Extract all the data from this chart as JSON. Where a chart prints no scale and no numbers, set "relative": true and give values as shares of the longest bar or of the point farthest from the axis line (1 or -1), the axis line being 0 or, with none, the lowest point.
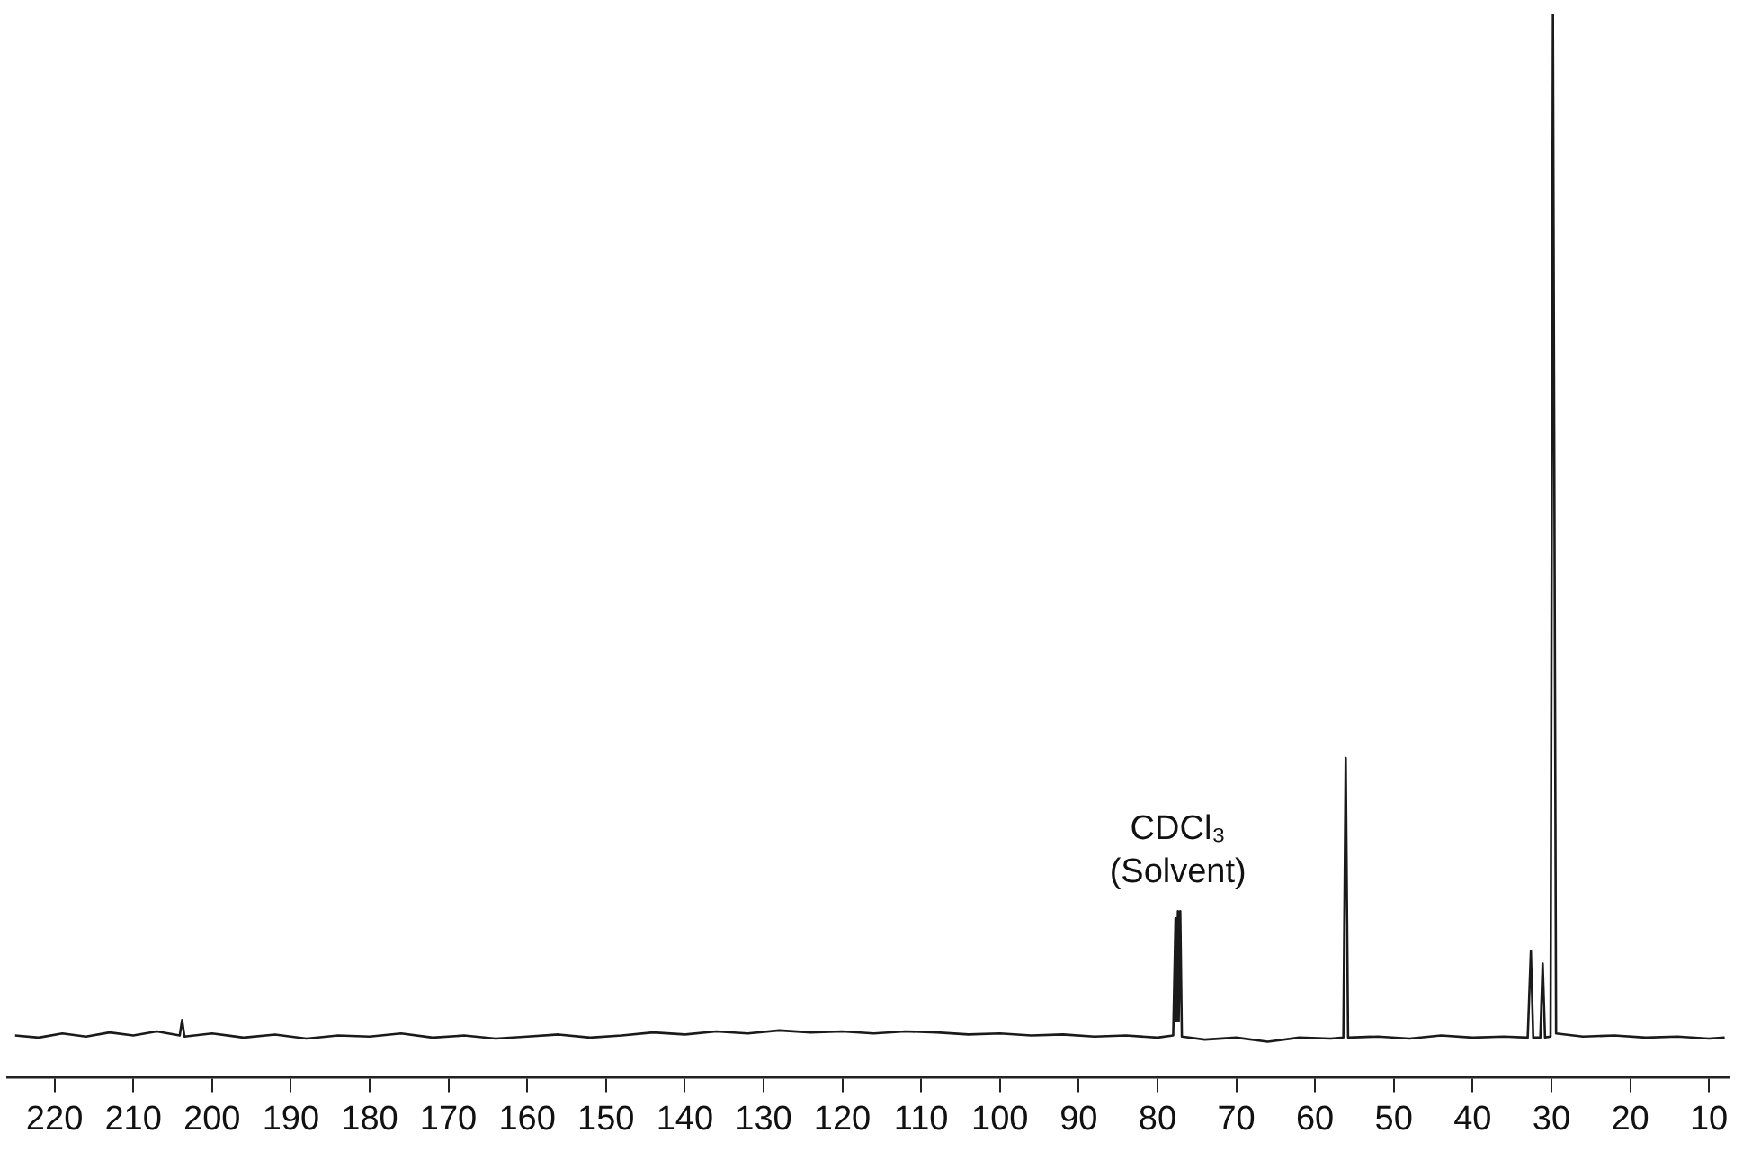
{
  "chart_data": {
    "type": "line",
    "relative": true,
    "color": "#1a1a1a",
    "marker": "none",
    "grid": false,
    "legend": false,
    "xlim": [
      226,
      7.5
    ],
    "xticks": [
      220,
      210,
      200,
      190,
      180,
      170,
      160,
      150,
      140,
      130,
      120,
      110,
      100,
      90,
      80,
      70,
      60,
      50,
      40,
      30,
      20,
      10
    ],
    "x": [
      225,
      222,
      219,
      216,
      213,
      210,
      207,
      204.1,
      203.8,
      203.5,
      200,
      196,
      192,
      188,
      184,
      180,
      176,
      172,
      168,
      164,
      160,
      156,
      152,
      148,
      144,
      140,
      136,
      132,
      128,
      124,
      120,
      116,
      112,
      108,
      104,
      100,
      96,
      92,
      88,
      84,
      80,
      78,
      77.7,
      77.6,
      77.4,
      77.3,
      77.1,
      76.9,
      74,
      70,
      66,
      62,
      58,
      56.4,
      56.1,
      55.8,
      52,
      48,
      44,
      40,
      36,
      33,
      32.6,
      32.3,
      31.4,
      31.1,
      30.8,
      30.1,
      29.8,
      29.4,
      26,
      22,
      18,
      14,
      10,
      8
    ],
    "values": [
      0.006,
      0.004,
      0.008,
      0.005,
      0.009,
      0.006,
      0.01,
      0.006,
      0.021,
      0.005,
      0.008,
      0.004,
      0.007,
      0.003,
      0.006,
      0.005,
      0.008,
      0.004,
      0.006,
      0.003,
      0.005,
      0.007,
      0.004,
      0.006,
      0.009,
      0.007,
      0.01,
      0.008,
      0.011,
      0.009,
      0.01,
      0.008,
      0.01,
      0.009,
      0.007,
      0.008,
      0.006,
      0.007,
      0.005,
      0.006,
      0.004,
      0.006,
      0.12,
      0.02,
      0.127,
      0.02,
      0.127,
      0.005,
      0.002,
      0.004,
      0,
      0.004,
      0.003,
      0.004,
      0.276,
      0.004,
      0.005,
      0.003,
      0.006,
      0.004,
      0.005,
      0.004,
      0.088,
      0.004,
      0.004,
      0.076,
      0.004,
      0.005,
      1,
      0.008,
      0.005,
      0.006,
      0.004,
      0.005,
      0.003,
      0.004
    ],
    "annotations": [
      {
        "text": "CDCl₃\n(Solvent)",
        "x": 77.4,
        "y": 0.127
      }
    ]
  }
}
